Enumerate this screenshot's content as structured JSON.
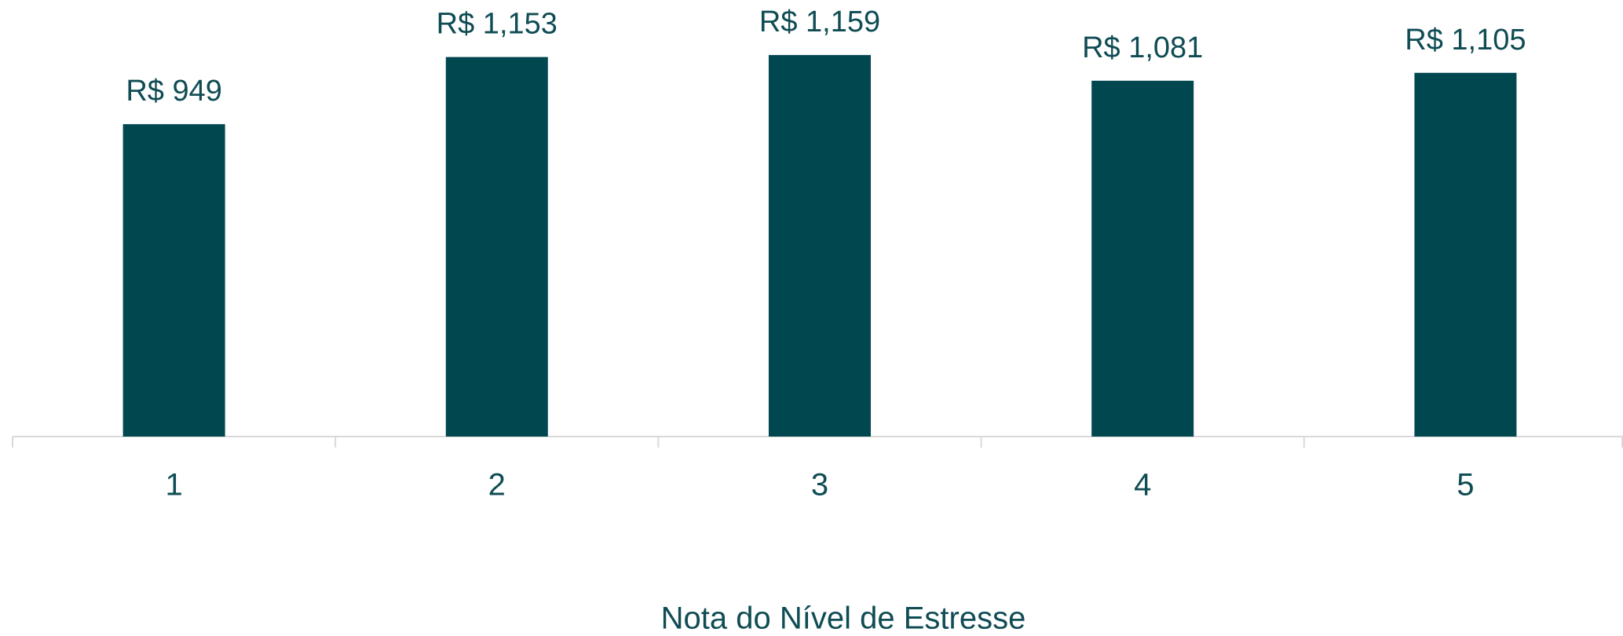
{
  "chart_data": {
    "type": "bar",
    "x_label": "Nota do Nível de Estresse",
    "categories": [
      "1",
      "2",
      "3",
      "4",
      "5"
    ],
    "values": [
      949,
      1153,
      1159,
      1081,
      1105
    ],
    "value_labels": [
      "R$ 949",
      "R$ 1,153",
      "R$ 1,159",
      "R$ 1,081",
      "R$ 1,105"
    ],
    "color": "#004750",
    "ylim": [
      0,
      1300
    ]
  }
}
